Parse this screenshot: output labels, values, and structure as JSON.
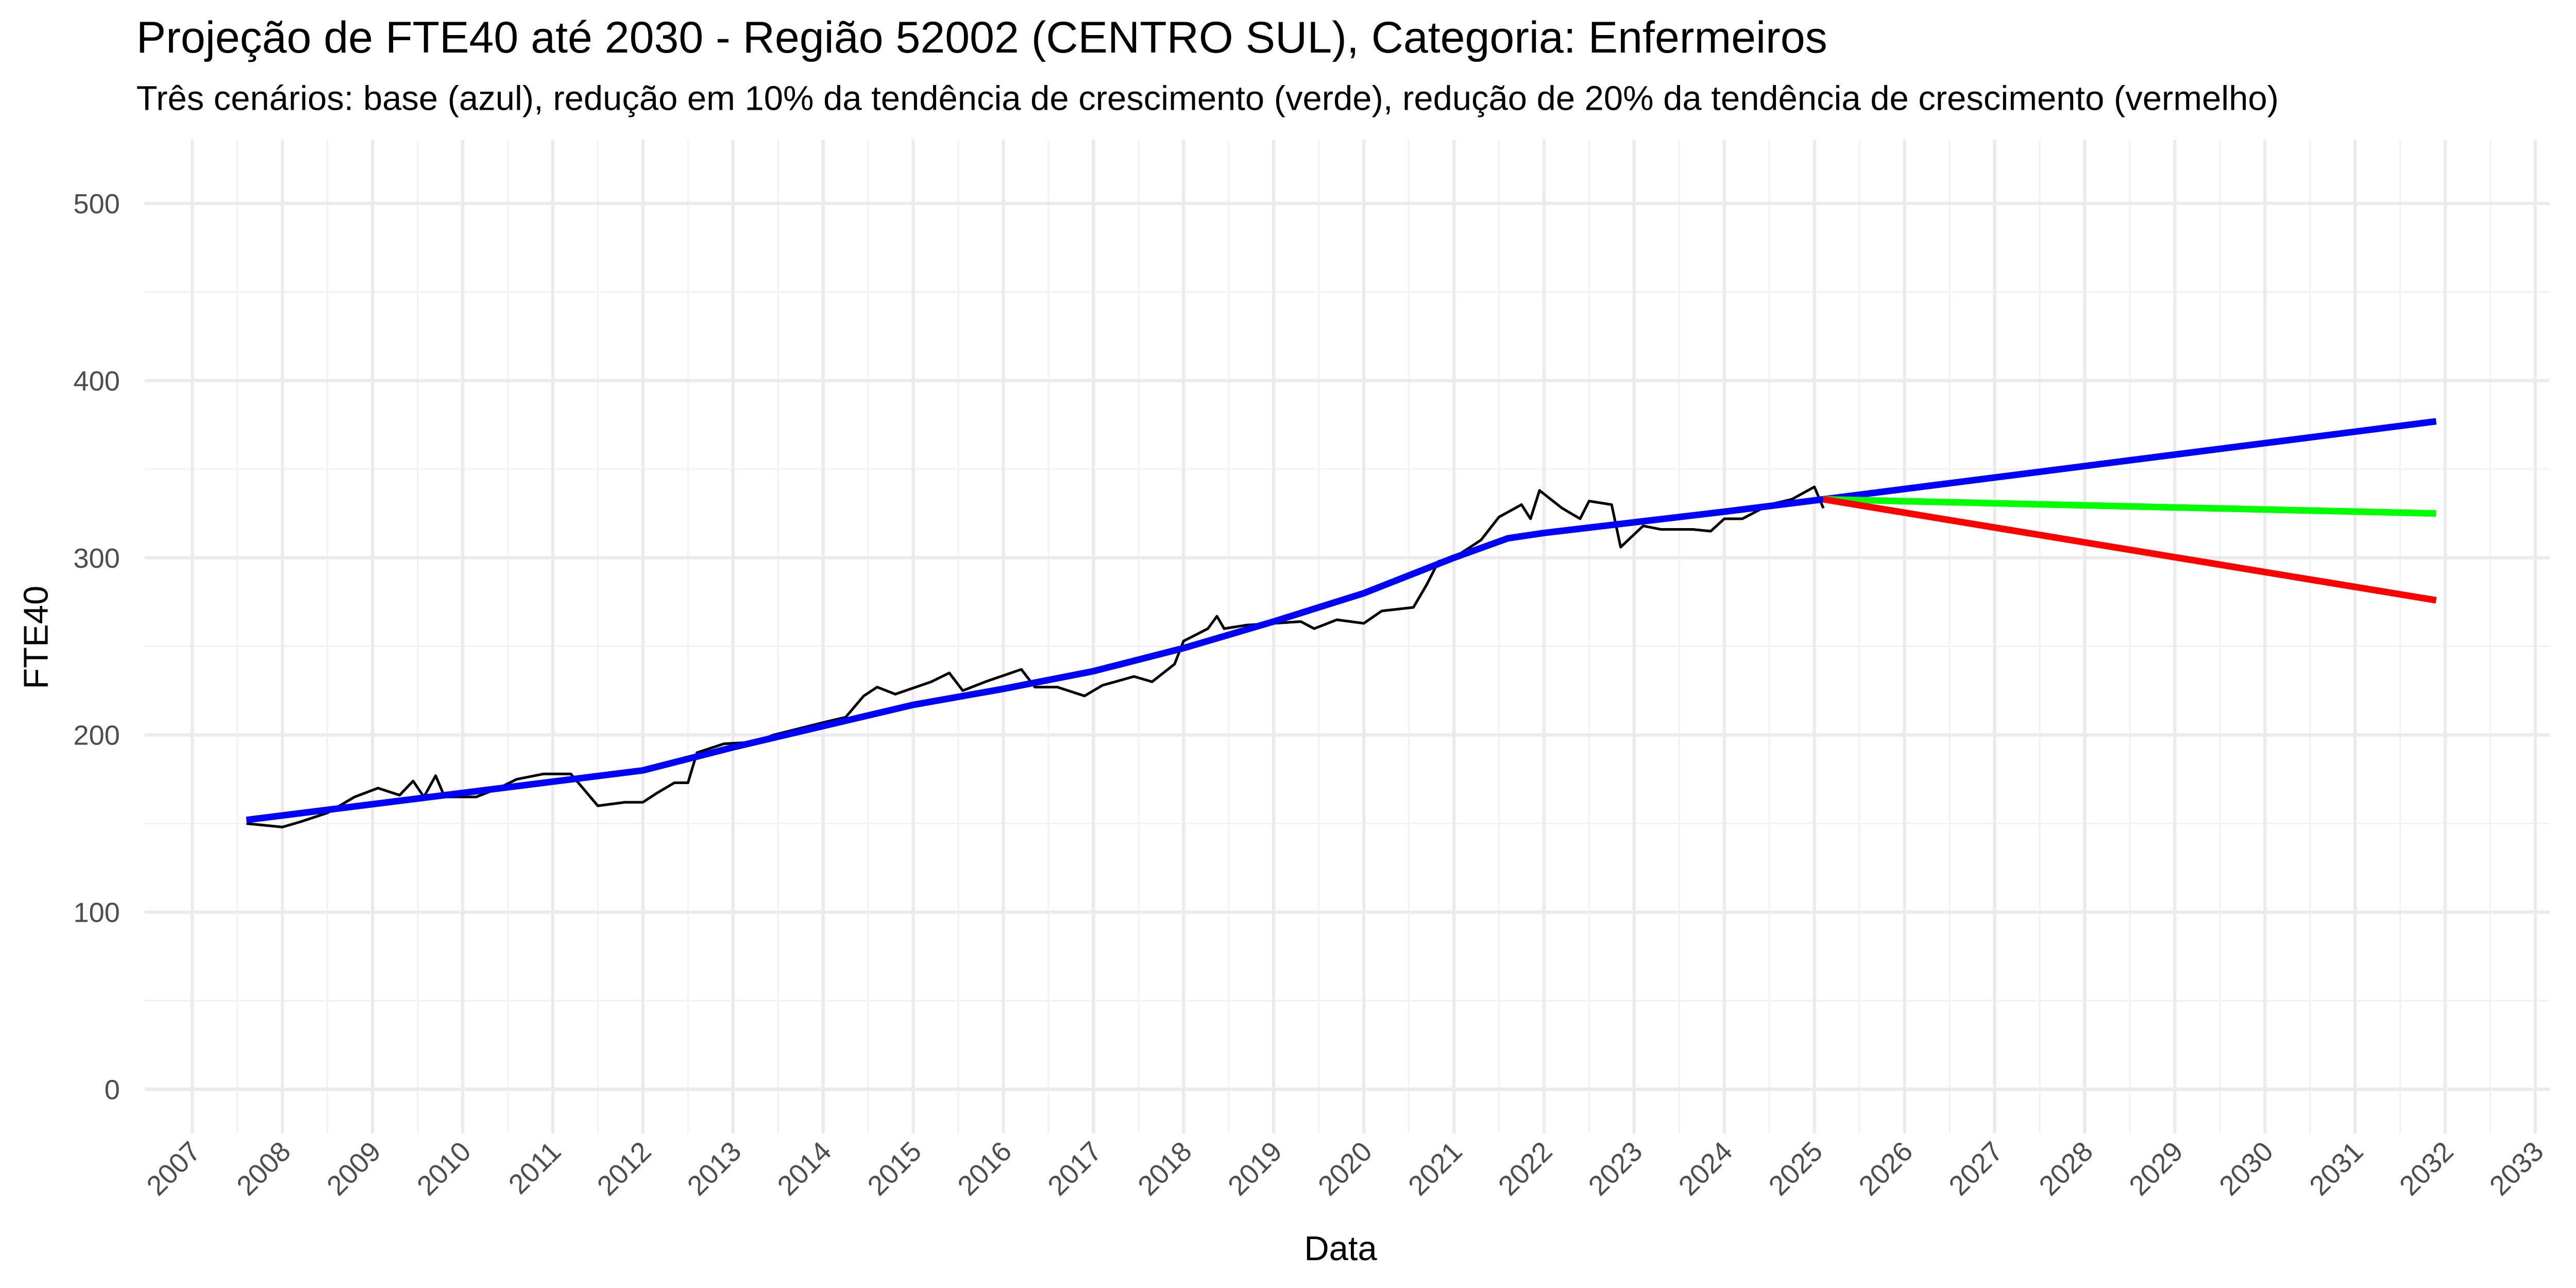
{
  "chart_data": {
    "type": "line",
    "title": "Projeção de FTE40 até 2030 - Região 52002 (CENTRO SUL), Categoria: Enfermeiros",
    "subtitle": "Três cenários: base (azul), redução em 10% da tendência de crescimento (verde), redução de 20% da tendência de crescimento (vermelho)",
    "x_label": "Data",
    "y_label": "FTE40",
    "xlim": [
      2006.47,
      2033.16
    ],
    "ylim": [
      -25,
      536
    ],
    "xticks": [
      2007,
      2008,
      2009,
      2010,
      2011,
      2012,
      2013,
      2014,
      2015,
      2016,
      2017,
      2018,
      2019,
      2020,
      2021,
      2022,
      2023,
      2024,
      2025,
      2026,
      2027,
      2028,
      2029,
      2030,
      2031,
      2032,
      2033
    ],
    "yticks": [
      0,
      100,
      200,
      300,
      400,
      500
    ],
    "grid": true,
    "series": [
      {
        "color": "#000000",
        "width": 1.6,
        "x": [
          2007.6,
          2007.8,
          2008.0,
          2008.2,
          2008.5,
          2008.8,
          2009.06,
          2009.3,
          2009.45,
          2009.57,
          2009.7,
          2009.8,
          2010.15,
          2010.4,
          2010.6,
          2010.9,
          2011.2,
          2011.5,
          2011.8,
          2012.0,
          2012.15,
          2012.35,
          2012.5,
          2012.6,
          2012.9,
          2013.25,
          2013.45,
          2014.0,
          2014.25,
          2014.45,
          2014.6,
          2014.8,
          2015.2,
          2015.4,
          2015.55,
          2015.8,
          2016.2,
          2016.35,
          2016.6,
          2016.9,
          2017.1,
          2017.45,
          2017.65,
          2017.9,
          2018.0,
          2018.27,
          2018.37,
          2018.45,
          2018.7,
          2019.3,
          2019.45,
          2019.7,
          2020.0,
          2020.2,
          2020.55,
          2020.7,
          2020.83,
          2021.0,
          2021.3,
          2021.5,
          2021.75,
          2021.85,
          2021.95,
          2022.2,
          2022.4,
          2022.5,
          2022.75,
          2022.85,
          2023.1,
          2023.3,
          2023.65,
          2023.85,
          2024.0,
          2024.2,
          2024.5,
          2024.75,
          2025.0,
          2025.1
        ],
        "values": [
          150,
          149,
          148,
          151,
          156,
          165,
          170,
          166,
          174,
          165,
          177,
          165,
          165,
          170,
          175,
          178,
          178,
          160,
          162,
          162,
          167,
          173,
          173,
          190,
          195,
          196,
          200,
          207,
          210,
          222,
          227,
          223,
          230,
          235,
          225,
          230,
          237,
          227,
          227,
          222,
          228,
          233,
          230,
          240,
          253,
          260,
          267,
          260,
          262,
          264,
          260,
          265,
          263,
          270,
          272,
          285,
          298,
          300,
          310,
          323,
          330,
          322,
          338,
          328,
          322,
          332,
          330,
          306,
          318,
          316,
          316,
          315,
          322,
          322,
          330,
          333,
          340,
          328
        ]
      },
      {
        "color": "#0000ff",
        "width": 4,
        "x": [
          2007.6,
          2012.0,
          2013.0,
          2014.0,
          2015.0,
          2016.0,
          2017.0,
          2018.0,
          2019.0,
          2020.0,
          2021.0,
          2021.6,
          2022.0,
          2023.0,
          2024.0,
          2025.1,
          2031.9
        ],
        "values": [
          152,
          180,
          193,
          205,
          217,
          226,
          236,
          249,
          264,
          280,
          300,
          311,
          314,
          320,
          326,
          333,
          377
        ]
      },
      {
        "color": "#00ff00",
        "width": 4,
        "x": [
          2025.1,
          2031.9
        ],
        "values": [
          333,
          325
        ]
      },
      {
        "color": "#ff0000",
        "width": 4,
        "x": [
          2025.1,
          2031.9
        ],
        "values": [
          333,
          276
        ]
      }
    ]
  }
}
